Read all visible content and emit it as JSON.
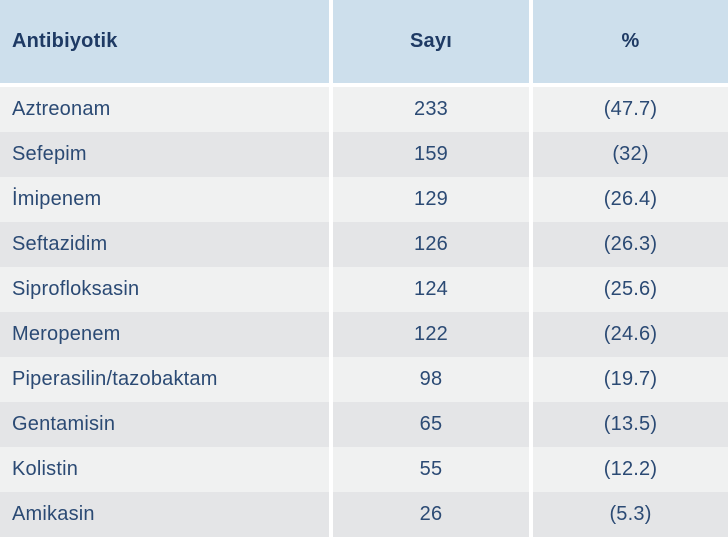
{
  "table": {
    "columns": [
      {
        "label": "Antibiyotik"
      },
      {
        "label": "Sayı"
      },
      {
        "label": "%"
      }
    ],
    "rows": [
      {
        "name": "Aztreonam",
        "sayi": "233",
        "pct": "(47.7)"
      },
      {
        "name": "Sefepim",
        "sayi": "159",
        "pct": "(32)"
      },
      {
        "name": "İmipenem",
        "sayi": "129",
        "pct": "(26.4)"
      },
      {
        "name": "Seftazidim",
        "sayi": "126",
        "pct": "(26.3)"
      },
      {
        "name": "Siprofloksasin",
        "sayi": "124",
        "pct": "(25.6)"
      },
      {
        "name": "Meropenem",
        "sayi": "122",
        "pct": "(24.6)"
      },
      {
        "name": "Piperasilin/tazobaktam",
        "sayi": "98",
        "pct": "(19.7)"
      },
      {
        "name": "Gentamisin",
        "sayi": "65",
        "pct": "(13.5)"
      },
      {
        "name": "Kolistin",
        "sayi": "55",
        "pct": "(12.2)"
      },
      {
        "name": "Amikasin",
        "sayi": "26",
        "pct": "(5.3)"
      }
    ]
  },
  "chart_data": {
    "type": "table",
    "columns": [
      "Antibiyotik",
      "Sayı",
      "%"
    ],
    "rows": [
      [
        "Aztreonam",
        233,
        47.7
      ],
      [
        "Sefepim",
        159,
        32
      ],
      [
        "İmipenem",
        129,
        26.4
      ],
      [
        "Seftazidim",
        126,
        26.3
      ],
      [
        "Siprofloksasin",
        124,
        25.6
      ],
      [
        "Meropenem",
        122,
        24.6
      ],
      [
        "Piperasilin/tazobaktam",
        98,
        19.7
      ],
      [
        "Gentamisin",
        65,
        13.5
      ],
      [
        "Kolistin",
        55,
        12.2
      ],
      [
        "Amikasin",
        26,
        5.3
      ]
    ]
  },
  "colors": {
    "header_bg": "#cddfec",
    "row_light": "#f0f1f1",
    "row_dark": "#e4e5e7",
    "header_text": "#1e3a64",
    "body_text": "#2b4a74",
    "divider": "#ffffff"
  }
}
